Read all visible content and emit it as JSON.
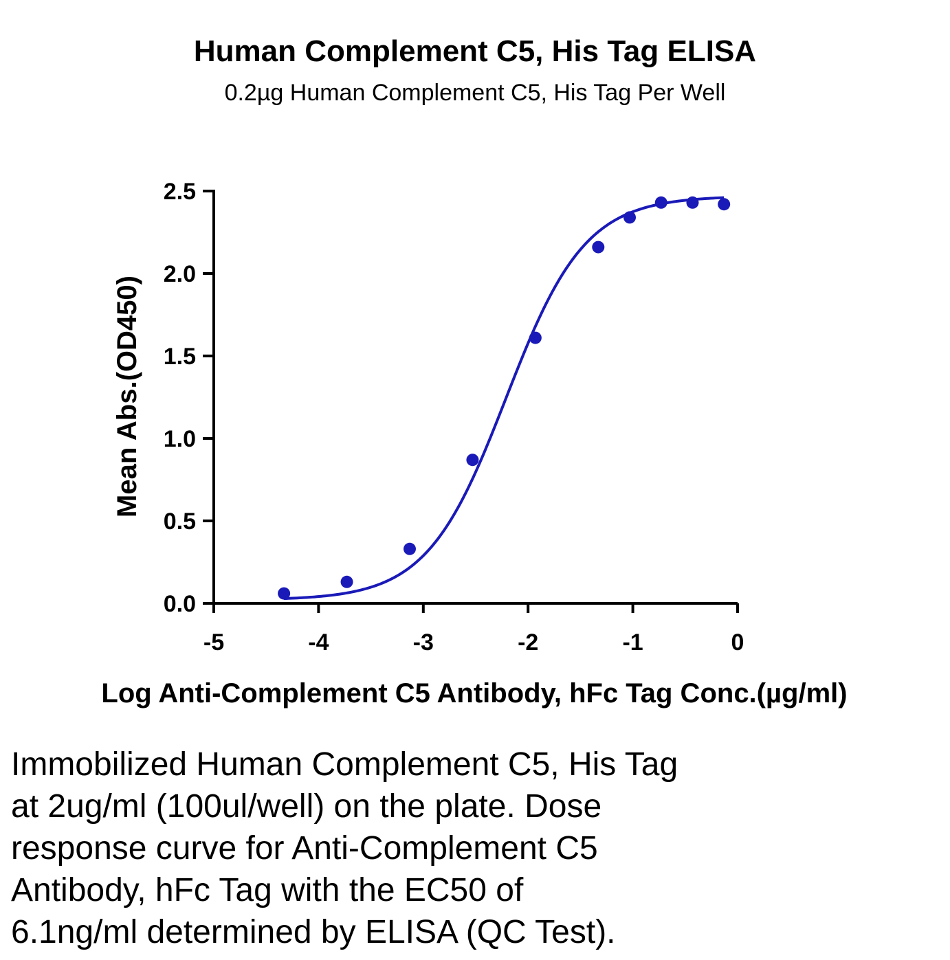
{
  "chart_data": {
    "type": "scatter",
    "title": "Human Complement C5, His Tag ELISA",
    "subtitle": "0.2µg Human Complement C5, His Tag Per Well",
    "xlabel": "Log Anti-Complement C5 Antibody, hFc Tag Conc.(µg/ml)",
    "ylabel": "Mean Abs.(OD450)",
    "xlim": [
      -5,
      0
    ],
    "ylim": [
      0,
      2.5
    ],
    "x_ticks": [
      "-5",
      "-4",
      "-3",
      "-2",
      "-1",
      "0"
    ],
    "y_ticks": [
      "0.0",
      "0.5",
      "1.0",
      "1.5",
      "2.0",
      "2.5"
    ],
    "grid": false,
    "series": [
      {
        "color": "#1a1ab8",
        "points": [
          {
            "x": -4.33,
            "y": 0.06
          },
          {
            "x": -3.73,
            "y": 0.13
          },
          {
            "x": -3.13,
            "y": 0.33
          },
          {
            "x": -2.53,
            "y": 0.87
          },
          {
            "x": -1.93,
            "y": 1.61
          },
          {
            "x": -1.33,
            "y": 2.16
          },
          {
            "x": -1.03,
            "y": 2.34
          },
          {
            "x": -0.73,
            "y": 2.43
          },
          {
            "x": -0.43,
            "y": 2.43
          },
          {
            "x": -0.13,
            "y": 2.42
          }
        ],
        "fit": {
          "bottom": 0.02,
          "top": 2.47,
          "log_ec50": -2.21,
          "hill": 1.15,
          "x_range": [
            -4.33,
            -0.13
          ]
        }
      }
    ]
  },
  "caption_lines": [
    "Immobilized Human Complement C5, His Tag",
    "at 2ug/ml (100ul/well) on the plate. Dose",
    "response curve for Anti-Complement C5",
    "Antibody, hFc Tag with the EC50 of",
    "6.1ng/ml determined by ELISA (QC Test)."
  ]
}
